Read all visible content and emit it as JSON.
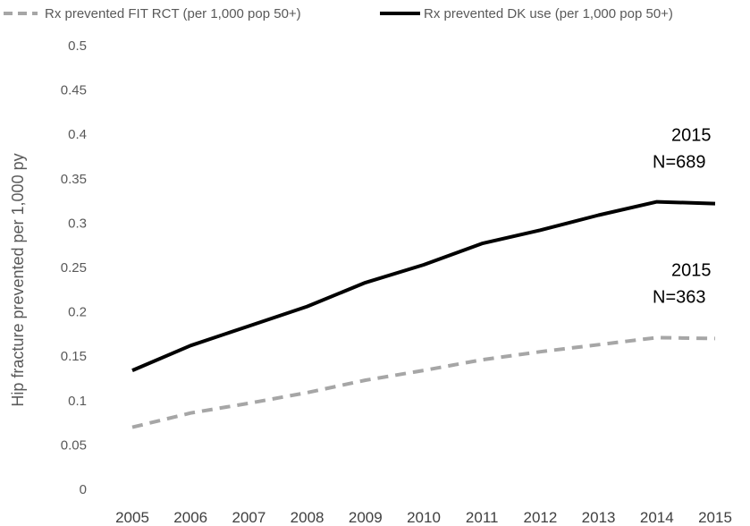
{
  "chart_data": {
    "type": "line",
    "title": "",
    "xlabel": "",
    "ylabel": "Hip fracture prevented per 1,000 py",
    "ylim": [
      0,
      0.5
    ],
    "yticks": [
      "0",
      "0.05",
      "0.1",
      "0.15",
      "0.2",
      "0.25",
      "0.3",
      "0.35",
      "0.4",
      "0.45",
      "0.5"
    ],
    "categories": [
      "2005",
      "2006",
      "2007",
      "2008",
      "2009",
      "2010",
      "2011",
      "2012",
      "2013",
      "2014",
      "2015"
    ],
    "grid": false,
    "legend_position": "top",
    "series": [
      {
        "name": "Rx prevented FIT RCT (per 1,000 pop 50+)",
        "color": "#a6a6a6",
        "style": "dashed",
        "values": [
          0.07,
          0.086,
          0.097,
          0.109,
          0.123,
          0.134,
          0.146,
          0.155,
          0.163,
          0.171,
          0.17
        ]
      },
      {
        "name": "Rx prevented DK use (per 1,000 pop 50+)",
        "color": "#000000",
        "style": "solid",
        "values": [
          0.134,
          0.162,
          0.184,
          0.206,
          0.233,
          0.253,
          0.277,
          0.292,
          0.309,
          0.324,
          0.322
        ]
      }
    ],
    "annotations": [
      {
        "series": 1,
        "lines": [
          "2015",
          "N=689"
        ]
      },
      {
        "series": 0,
        "lines": [
          "2015",
          "N=363"
        ]
      }
    ]
  }
}
